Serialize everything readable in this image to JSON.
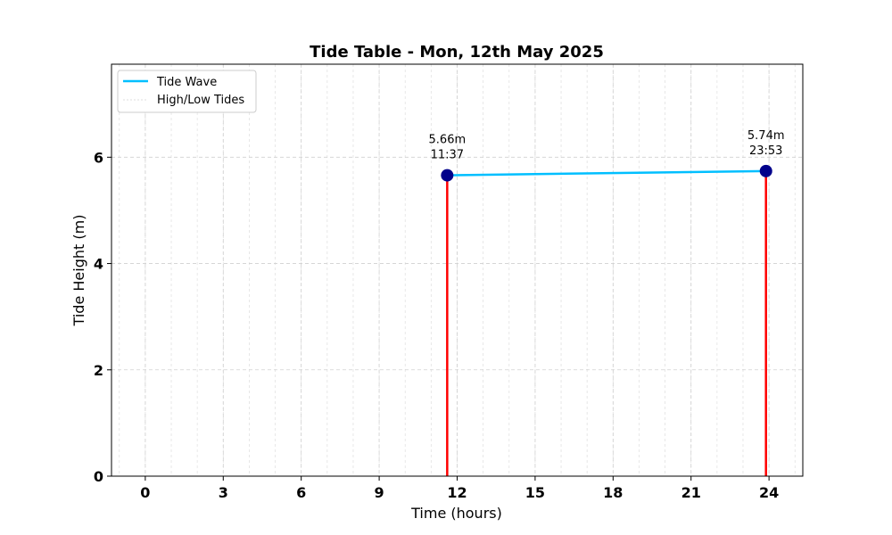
{
  "chart_data": {
    "type": "line",
    "title": "Tide Table - Mon, 12th May 2025",
    "xlabel": "Time (hours)",
    "ylabel": "Tide Height (m)",
    "xlim": [
      -1.3,
      25.3
    ],
    "ylim": [
      0,
      7.75
    ],
    "xticks": [
      0,
      3,
      6,
      9,
      12,
      15,
      18,
      21,
      24
    ],
    "xtick_labels": [
      "0",
      "3",
      "6",
      "9",
      "12",
      "15",
      "18",
      "21",
      "24"
    ],
    "yticks": [
      0,
      2,
      4,
      6
    ],
    "ytick_labels": [
      "0",
      "2",
      "4",
      "6"
    ],
    "x_minor_grid_step": 1,
    "grid": true,
    "legend_position": "top-left",
    "series": [
      {
        "name": "Tide Wave",
        "color": "#00bfff",
        "style": "line",
        "x": [
          11.617,
          23.883
        ],
        "y": [
          5.66,
          5.74
        ]
      },
      {
        "name": "High/Low Tides",
        "color": "#ff0000",
        "style": "stem",
        "legend_color": "#dddddd",
        "marker_color": "#00008b",
        "x": [
          11.617,
          23.883
        ],
        "y": [
          5.66,
          5.74
        ]
      }
    ],
    "annotations": [
      {
        "x": 11.617,
        "y": 5.66,
        "height_text": "5.66m",
        "time_text": "11:37"
      },
      {
        "x": 23.883,
        "y": 5.74,
        "height_text": "5.74m",
        "time_text": "23:53"
      }
    ]
  }
}
